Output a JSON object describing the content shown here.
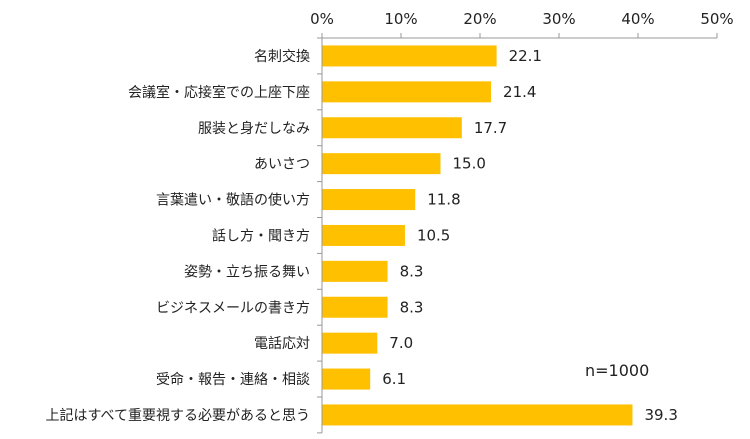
{
  "chart_data": {
    "type": "bar",
    "orientation": "horizontal",
    "categories": [
      "名刺交換",
      "会議室・応接室での上座下座",
      "服装と身だしなみ",
      "あいさつ",
      "言葉遣い・敬語の使い方",
      "話し方・聞き方",
      "姿勢・立ち振る舞い",
      "ビジネスメールの書き方",
      "電話応対",
      "受命・報告・連絡・相談",
      "上記はすべて重要視する必要があると思う"
    ],
    "values": [
      22.1,
      21.4,
      17.7,
      15.0,
      11.8,
      10.5,
      8.3,
      8.3,
      7.0,
      6.1,
      39.3
    ],
    "value_labels": [
      "22.1",
      "21.4",
      "17.7",
      "15.0",
      "11.8",
      "10.5",
      "8.3",
      "8.3",
      "7.0",
      "6.1",
      "39.3"
    ],
    "xlim": [
      0,
      50
    ],
    "xticks": [
      0,
      10,
      20,
      30,
      40,
      50
    ],
    "xtick_labels": [
      "0%",
      "10%",
      "20%",
      "30%",
      "40%",
      "50%"
    ],
    "x_axis_position": "top",
    "grid": false,
    "bar_color": "#FFC000",
    "annotation": "n=1000"
  }
}
